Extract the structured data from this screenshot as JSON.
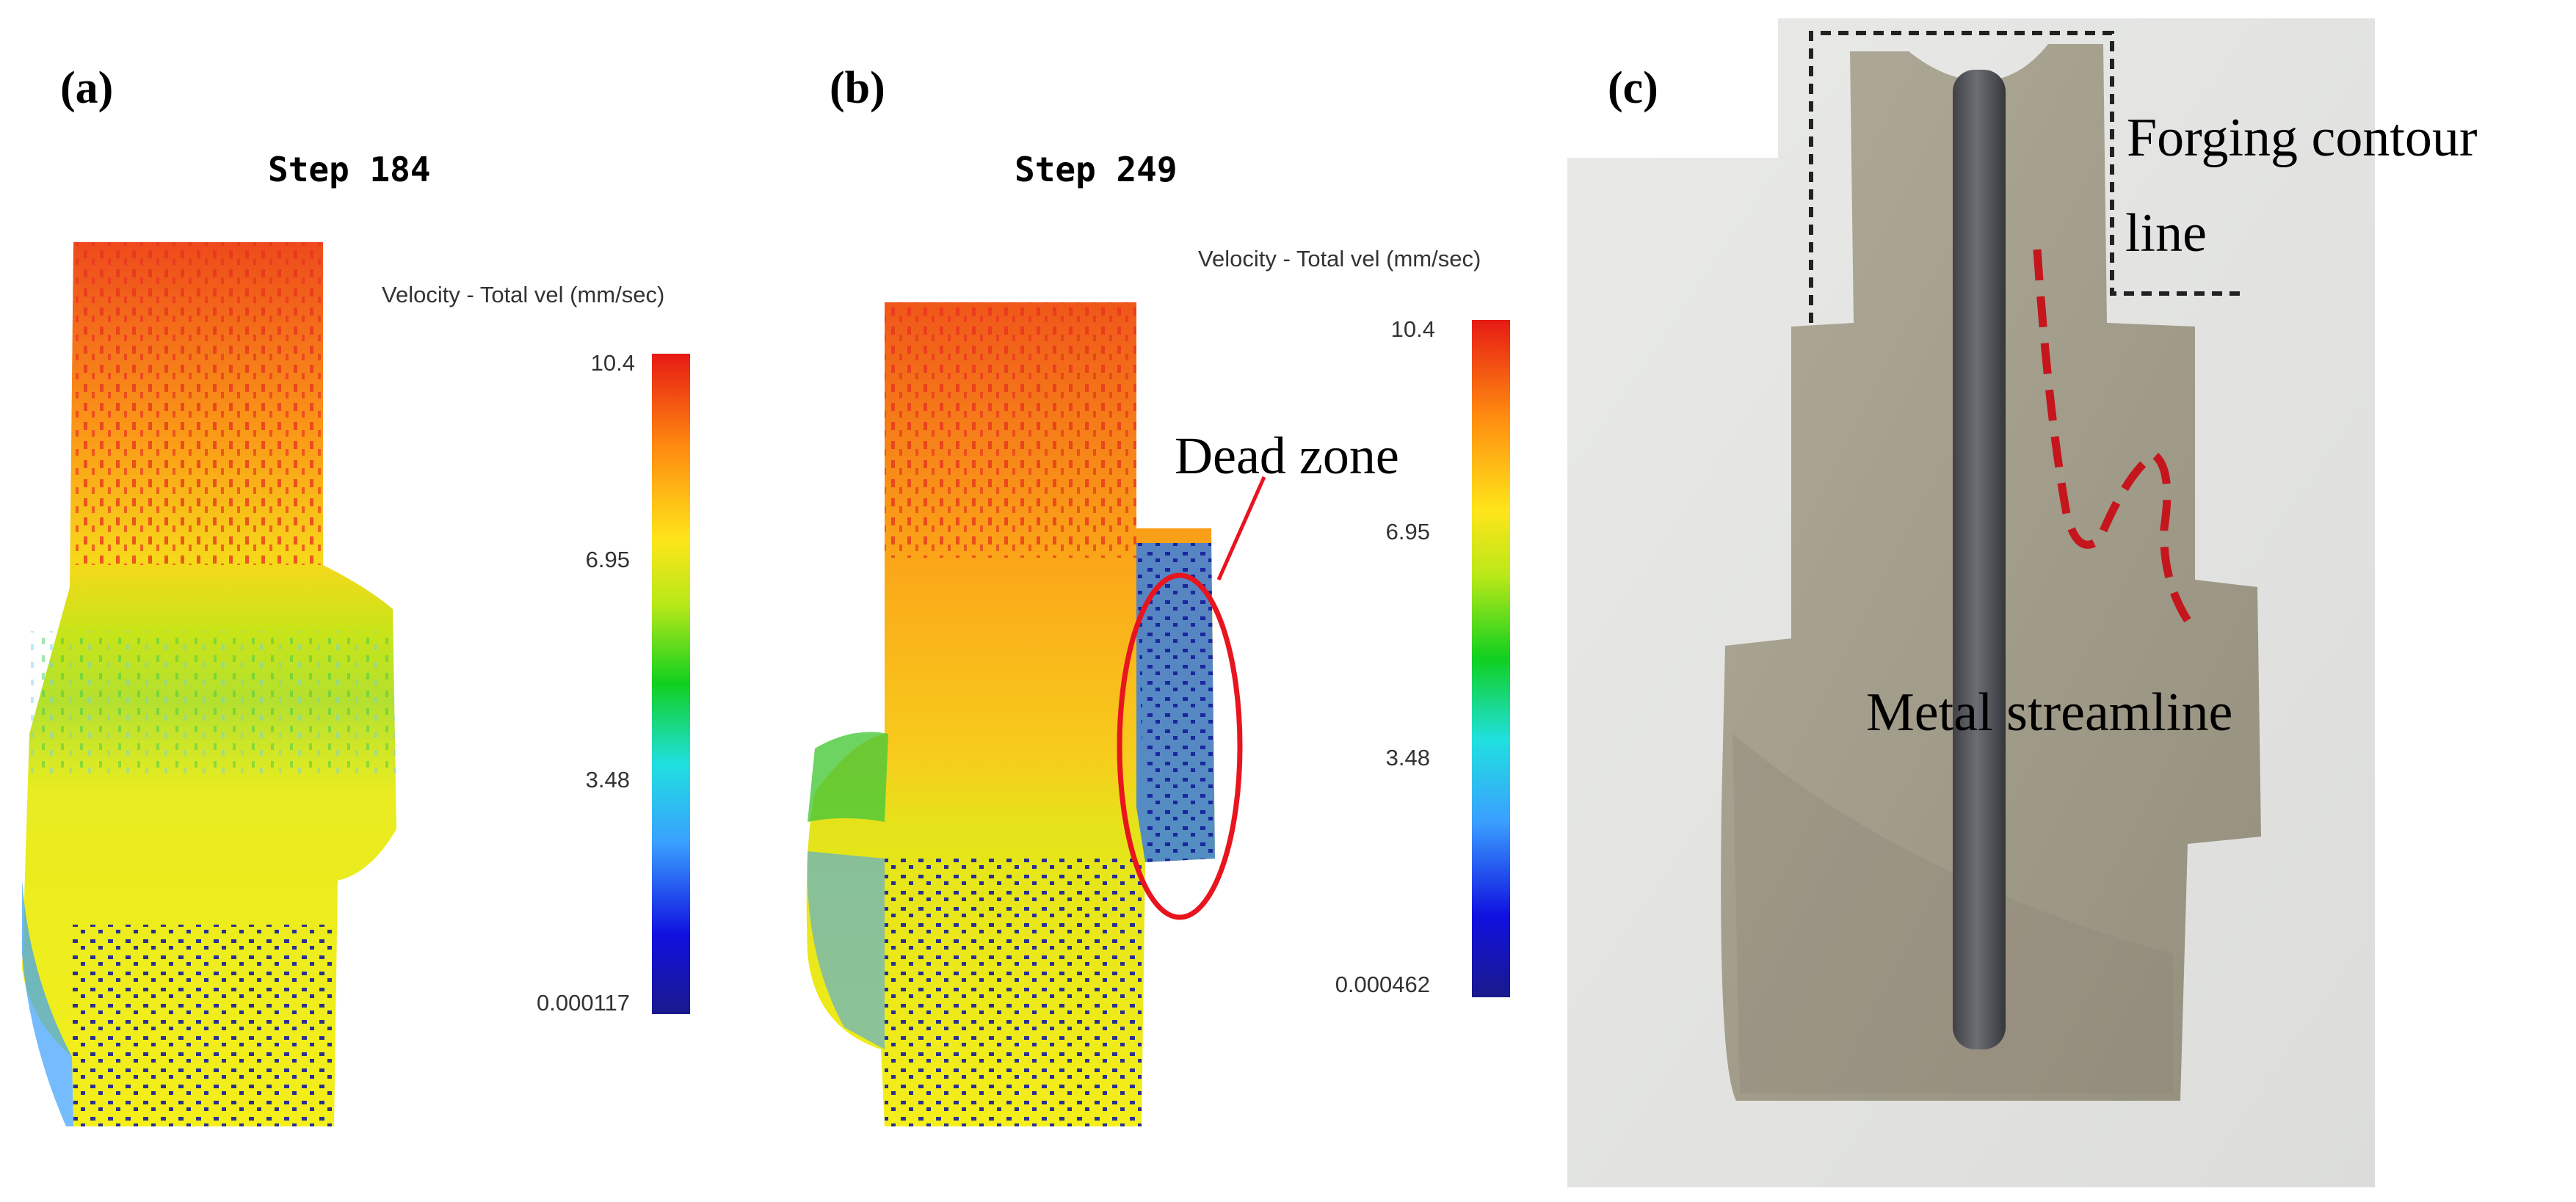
{
  "panels": {
    "a": {
      "tag": "(a)",
      "step_title": "Step 184",
      "legend": {
        "title": "Velocity - Total vel (mm/sec)",
        "ticks": [
          "10.4",
          "6.95",
          "3.48",
          "0.000117"
        ]
      }
    },
    "b": {
      "tag": "(b)",
      "step_title": "Step 249",
      "annotation": "Dead zone",
      "legend": {
        "title": "Velocity - Total vel (mm/sec)",
        "ticks": [
          "10.4",
          "6.95",
          "3.48",
          "0.000462"
        ]
      }
    },
    "c": {
      "tag": "(c)",
      "labels": {
        "contour_line_1": "Forging contour",
        "contour_line_2": "line",
        "streamline": "Metal streamline"
      }
    }
  },
  "colors": {
    "high_velocity": "#e8321e",
    "mid_velocity": "#f7ef1c",
    "low_velocity": "#1420b8",
    "dead_zone_ellipse": "#e8141e",
    "streamline": "#c4161c",
    "forging_metal": "#a39d8c",
    "photo_background": "#e4e5e3"
  }
}
